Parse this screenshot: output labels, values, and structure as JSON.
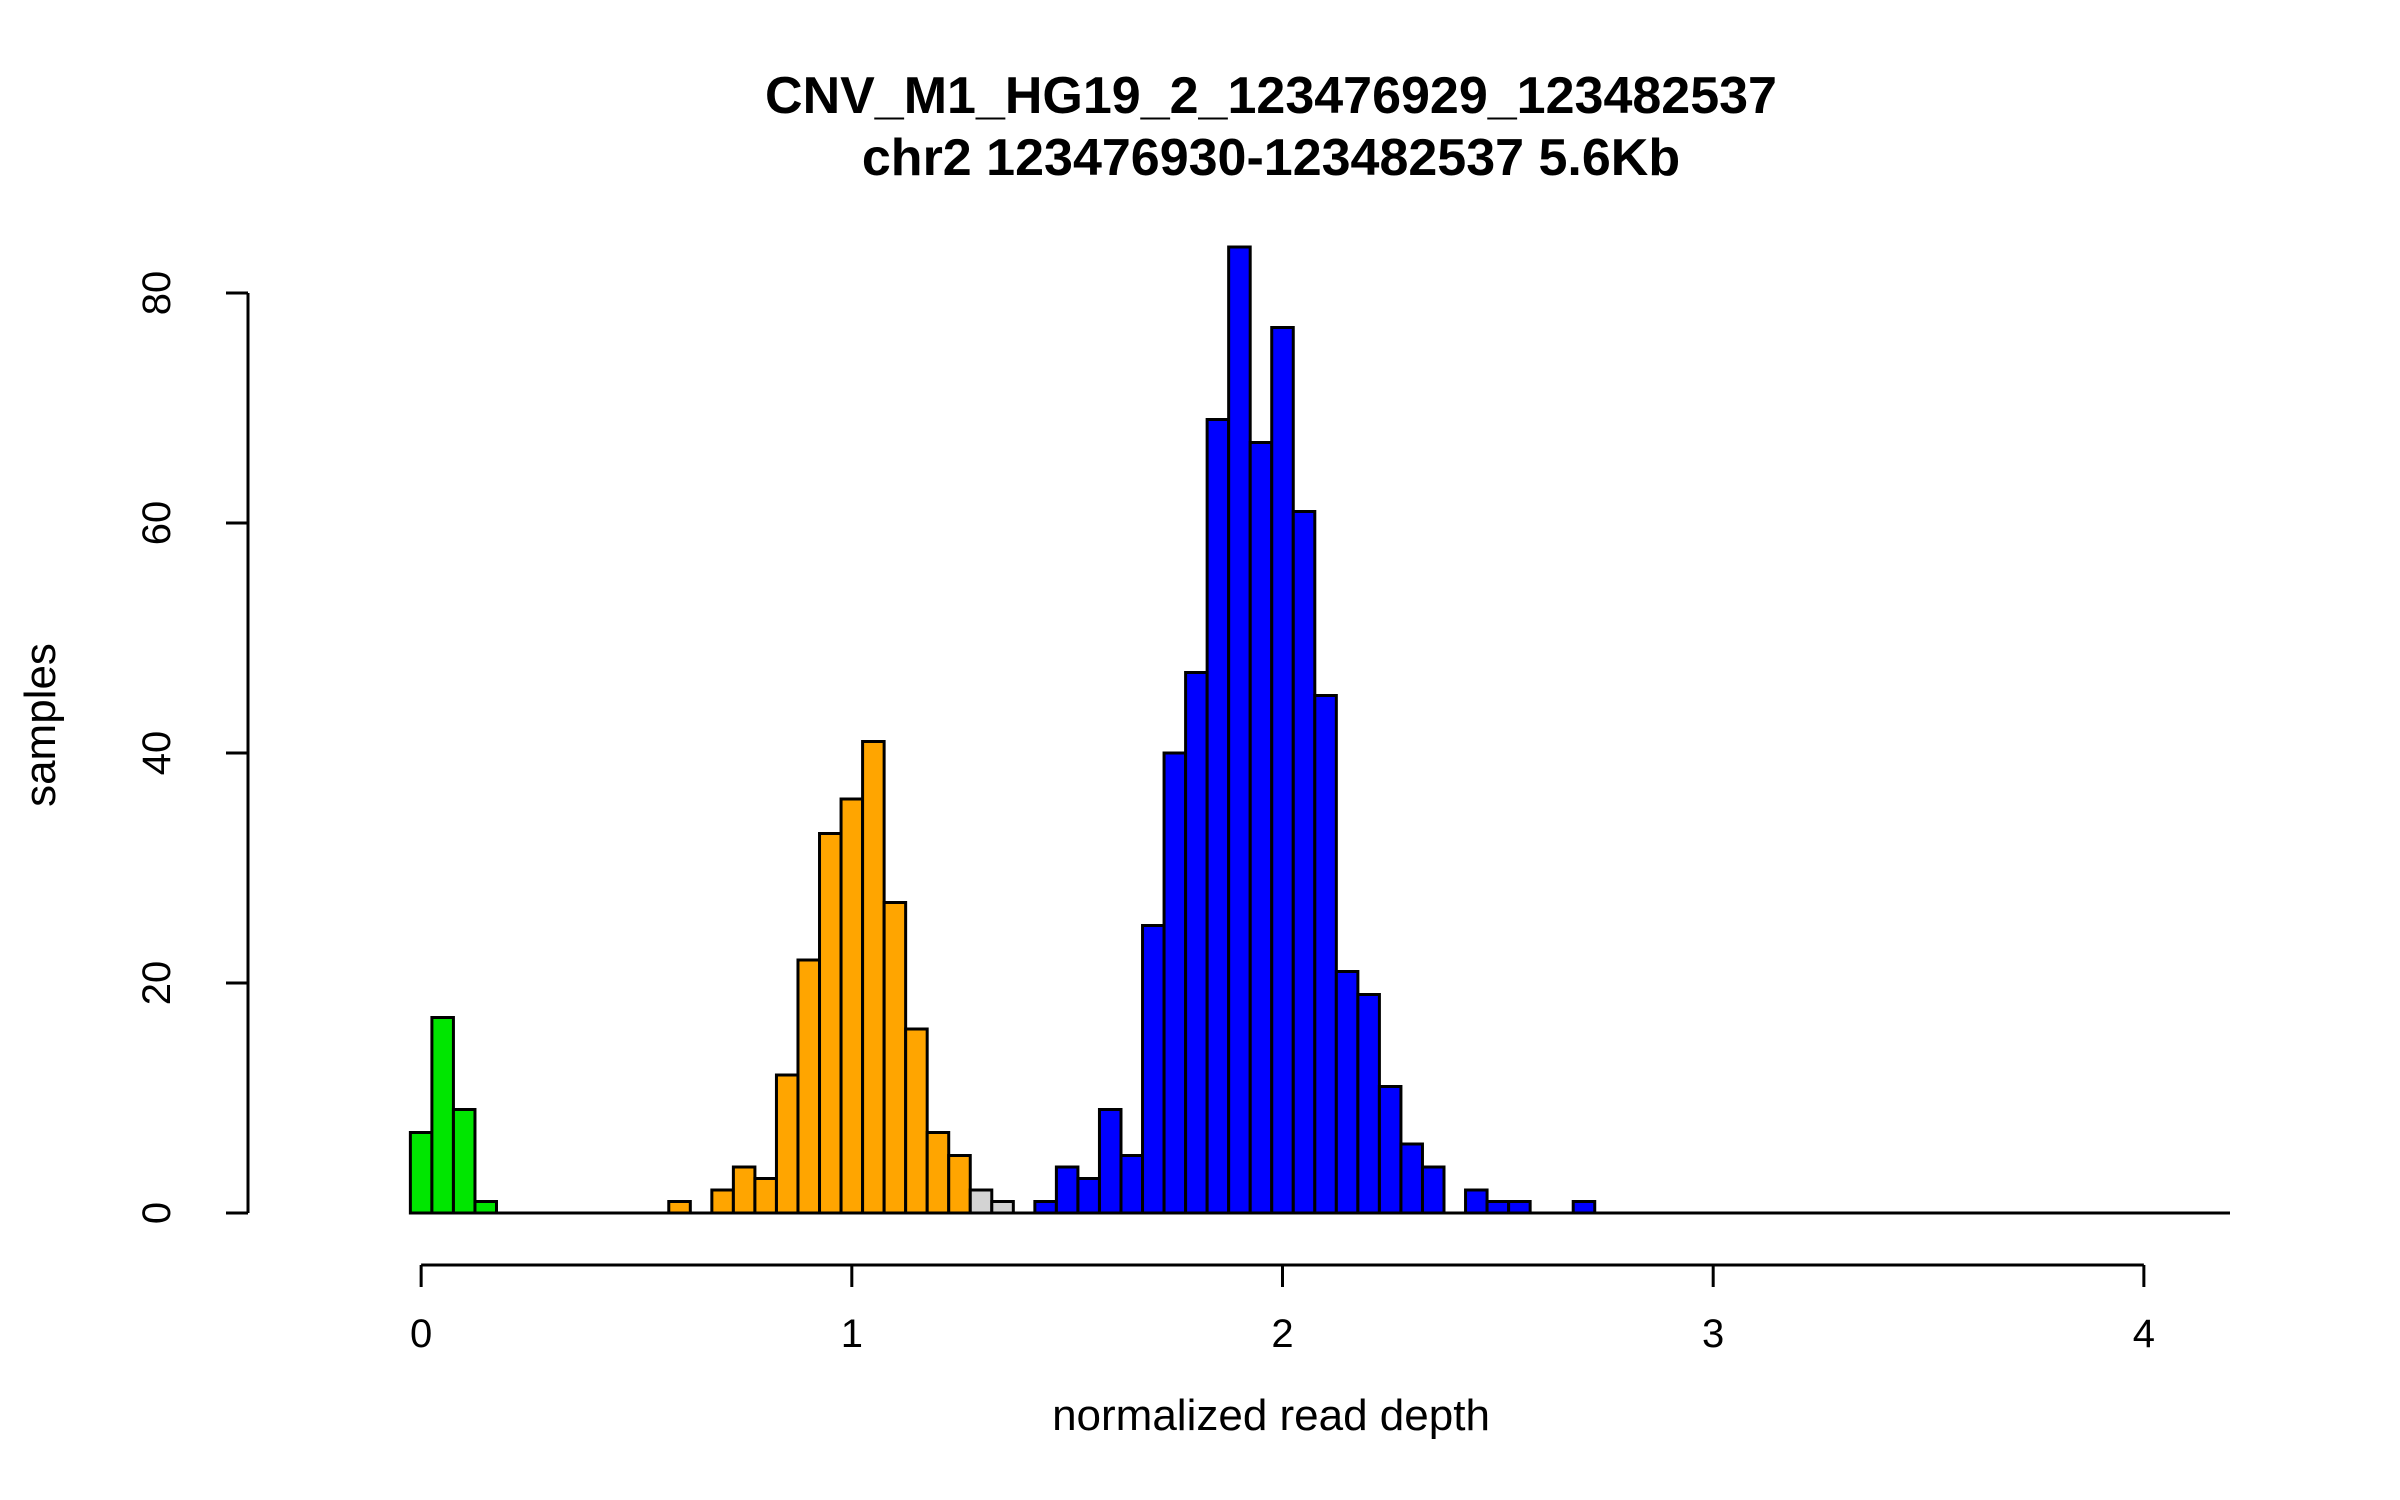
{
  "chart_data": {
    "type": "bar",
    "title": "CNV_M1_HG19_2_123476929_123482537",
    "subtitle": "chr2 123476930-123482537 5.6Kb",
    "xlabel": "normalized read depth",
    "ylabel": "samples",
    "xlim": [
      -0.2,
      4.2
    ],
    "ylim": [
      0,
      84
    ],
    "xticks": [
      "0",
      "1",
      "2",
      "3",
      "4"
    ],
    "yticks": [
      "0",
      "20",
      "40",
      "60",
      "80"
    ],
    "bin_width": 0.05,
    "colors": {
      "green": "#00e600",
      "orange": "#ffa500",
      "gray": "#d3d3d3",
      "blue": "#0000ff"
    },
    "bins": [
      {
        "x0": -0.025,
        "count": 7,
        "color": "green"
      },
      {
        "x0": 0.025,
        "count": 17,
        "color": "green"
      },
      {
        "x0": 0.075,
        "count": 9,
        "color": "green"
      },
      {
        "x0": 0.125,
        "count": 1,
        "color": "green"
      },
      {
        "x0": 0.175,
        "count": 0,
        "color": "green"
      },
      {
        "x0": 0.225,
        "count": 0,
        "color": "orange"
      },
      {
        "x0": 0.275,
        "count": 0,
        "color": "orange"
      },
      {
        "x0": 0.325,
        "count": 0,
        "color": "orange"
      },
      {
        "x0": 0.375,
        "count": 0,
        "color": "orange"
      },
      {
        "x0": 0.425,
        "count": 0,
        "color": "orange"
      },
      {
        "x0": 0.475,
        "count": 0,
        "color": "orange"
      },
      {
        "x0": 0.525,
        "count": 0,
        "color": "orange"
      },
      {
        "x0": 0.575,
        "count": 1,
        "color": "orange"
      },
      {
        "x0": 0.625,
        "count": 0,
        "color": "orange"
      },
      {
        "x0": 0.675,
        "count": 2,
        "color": "orange"
      },
      {
        "x0": 0.725,
        "count": 4,
        "color": "orange"
      },
      {
        "x0": 0.775,
        "count": 3,
        "color": "orange"
      },
      {
        "x0": 0.825,
        "count": 12,
        "color": "orange"
      },
      {
        "x0": 0.875,
        "count": 22,
        "color": "orange"
      },
      {
        "x0": 0.925,
        "count": 33,
        "color": "orange"
      },
      {
        "x0": 0.975,
        "count": 36,
        "color": "orange"
      },
      {
        "x0": 1.025,
        "count": 41,
        "color": "orange"
      },
      {
        "x0": 1.075,
        "count": 27,
        "color": "orange"
      },
      {
        "x0": 1.125,
        "count": 16,
        "color": "orange"
      },
      {
        "x0": 1.175,
        "count": 7,
        "color": "orange"
      },
      {
        "x0": 1.225,
        "count": 5,
        "color": "orange"
      },
      {
        "x0": 1.275,
        "count": 2,
        "color": "gray"
      },
      {
        "x0": 1.325,
        "count": 1,
        "color": "gray"
      },
      {
        "x0": 1.375,
        "count": 0,
        "color": "gray"
      },
      {
        "x0": 1.425,
        "count": 1,
        "color": "blue"
      },
      {
        "x0": 1.475,
        "count": 4,
        "color": "blue"
      },
      {
        "x0": 1.525,
        "count": 3,
        "color": "blue"
      },
      {
        "x0": 1.575,
        "count": 9,
        "color": "blue"
      },
      {
        "x0": 1.625,
        "count": 5,
        "color": "blue"
      },
      {
        "x0": 1.675,
        "count": 25,
        "color": "blue"
      },
      {
        "x0": 1.725,
        "count": 40,
        "color": "blue"
      },
      {
        "x0": 1.775,
        "count": 47,
        "color": "blue"
      },
      {
        "x0": 1.825,
        "count": 69,
        "color": "blue"
      },
      {
        "x0": 1.875,
        "count": 84,
        "color": "blue"
      },
      {
        "x0": 1.925,
        "count": 67,
        "color": "blue"
      },
      {
        "x0": 1.975,
        "count": 77,
        "color": "blue"
      },
      {
        "x0": 2.025,
        "count": 61,
        "color": "blue"
      },
      {
        "x0": 2.075,
        "count": 45,
        "color": "blue"
      },
      {
        "x0": 2.125,
        "count": 21,
        "color": "blue"
      },
      {
        "x0": 2.175,
        "count": 19,
        "color": "blue"
      },
      {
        "x0": 2.225,
        "count": 11,
        "color": "blue"
      },
      {
        "x0": 2.275,
        "count": 6,
        "color": "blue"
      },
      {
        "x0": 2.325,
        "count": 4,
        "color": "blue"
      },
      {
        "x0": 2.375,
        "count": 0,
        "color": "blue"
      },
      {
        "x0": 2.425,
        "count": 2,
        "color": "blue"
      },
      {
        "x0": 2.475,
        "count": 1,
        "color": "blue"
      },
      {
        "x0": 2.525,
        "count": 1,
        "color": "blue"
      },
      {
        "x0": 2.575,
        "count": 0,
        "color": "blue"
      },
      {
        "x0": 2.625,
        "count": 0,
        "color": "blue"
      },
      {
        "x0": 2.675,
        "count": 1,
        "color": "blue"
      },
      {
        "x0": 2.725,
        "count": 0,
        "color": "blue"
      }
    ]
  }
}
